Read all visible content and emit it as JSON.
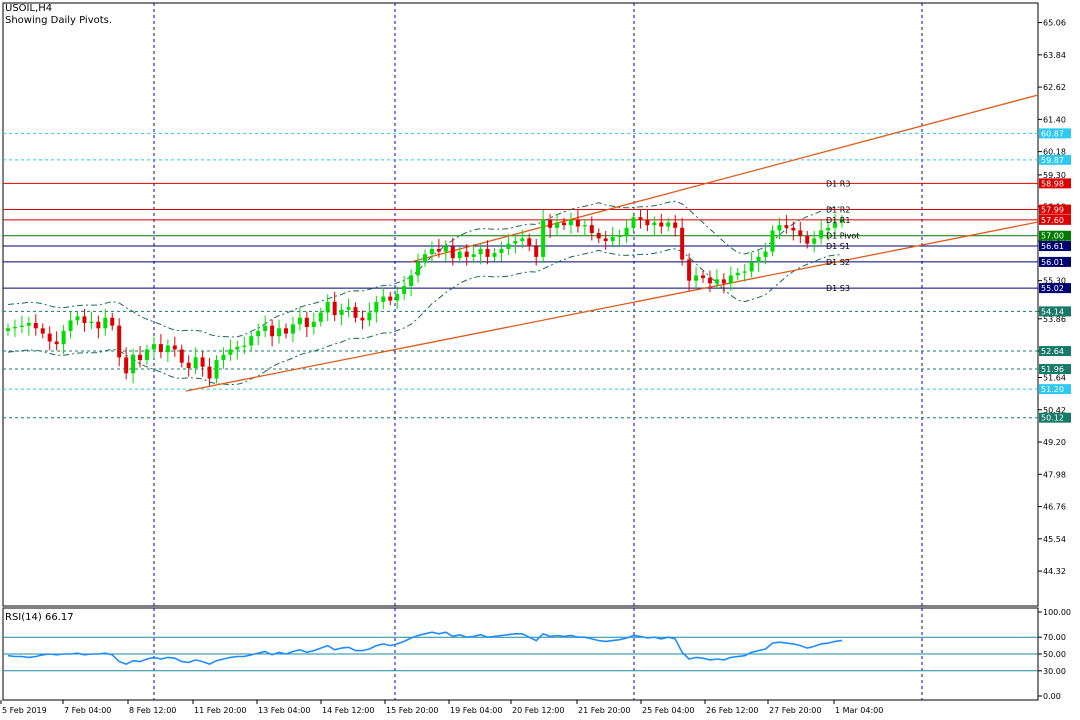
{
  "header": {
    "symbol": "USOIL,H4",
    "subtitle": "Showing Daily Pivots."
  },
  "colors": {
    "bull": "#00dd00",
    "bear": "#dd0000",
    "trend": "#e05a1a",
    "grid_v": "#0000cc",
    "level": "#1a8aa0",
    "rsi_line": "#1e8cff",
    "pivot_red": "#dd0000",
    "pivot_green": "#007a00",
    "pivot_navy": "#000070",
    "envelope": "#1a6a5a"
  },
  "chart_data": [
    {
      "type": "candlestick",
      "title": "USOIL,H4",
      "subtitle": "Showing Daily Pivots.",
      "ylim": [
        43.0,
        65.8
      ],
      "y_ticks": [
        "65.06",
        "63.84",
        "62.62",
        "61.40",
        "60.18",
        "59.30",
        "58.10",
        "56.80",
        "55.30",
        "54.14",
        "53.86",
        "52.64",
        "51.64",
        "50.42",
        "49.20",
        "47.98",
        "46.76",
        "45.54",
        "44.32"
      ],
      "x_labels": [
        "5 Feb 2019",
        "7 Feb 04:00",
        "8 Feb 12:00",
        "11 Feb 20:00",
        "13 Feb 04:00",
        "14 Feb 12:00",
        "15 Feb 20:00",
        "19 Feb 04:00",
        "20 Feb 12:00",
        "21 Feb 20:00",
        "25 Feb 04:00",
        "26 Feb 12:00",
        "27 Feb 20:00",
        "1 Mar 04:00"
      ],
      "candles_close": [
        53.5,
        53.55,
        53.6,
        53.7,
        53.5,
        53.3,
        53.0,
        52.9,
        53.4,
        53.8,
        53.95,
        53.7,
        53.75,
        53.5,
        53.9,
        53.6,
        52.4,
        51.8,
        52.5,
        52.3,
        52.7,
        52.9,
        52.6,
        52.85,
        52.7,
        52.2,
        52.0,
        52.4,
        52.05,
        51.6,
        52.3,
        52.5,
        52.7,
        52.8,
        52.85,
        53.2,
        53.4,
        53.6,
        53.2,
        53.5,
        53.3,
        53.65,
        53.9,
        53.55,
        53.75,
        54.1,
        54.5,
        54.0,
        54.2,
        54.3,
        53.9,
        53.8,
        54.1,
        54.5,
        54.7,
        54.55,
        54.8,
        55.1,
        55.5,
        56.0,
        56.3,
        56.5,
        56.4,
        56.6,
        56.15,
        56.4,
        56.2,
        56.3,
        56.5,
        56.2,
        56.35,
        56.5,
        56.7,
        56.8,
        56.9,
        56.6,
        56.2,
        57.6,
        57.3,
        57.5,
        57.4,
        57.6,
        57.35,
        57.4,
        57.1,
        56.9,
        56.8,
        56.95,
        57.0,
        57.3,
        57.7,
        57.6,
        57.4,
        57.5,
        57.35,
        57.5,
        57.3,
        56.1,
        55.3,
        55.5,
        55.4,
        55.2,
        55.35,
        55.2,
        55.5,
        55.6,
        55.65,
        56.0,
        56.2,
        56.4,
        57.2,
        57.4,
        57.3,
        57.2,
        57.0,
        56.7,
        56.9,
        57.2,
        57.3,
        57.5,
        57.6
      ],
      "open": 53.4,
      "rsi": {
        "label": "RSI(14) 66.17",
        "period": 14,
        "last": 66.17,
        "y_ticks": [
          "100.00",
          "70.00",
          "50.00",
          "30.00",
          "0.00"
        ],
        "levels": [
          70,
          50,
          30
        ],
        "values": [
          48,
          47,
          47,
          46,
          47,
          49,
          50,
          49,
          50,
          50,
          51,
          49,
          50,
          50,
          51,
          49,
          41,
          38,
          42,
          41,
          44,
          46,
          44,
          46,
          45,
          41,
          40,
          43,
          41,
          38,
          42,
          44,
          46,
          47,
          47,
          49,
          51,
          53,
          49,
          52,
          50,
          53,
          55,
          52,
          54,
          57,
          60,
          55,
          57,
          58,
          54,
          54,
          56,
          60,
          62,
          60,
          62,
          65,
          69,
          72,
          74,
          76,
          74,
          76,
          71,
          73,
          70,
          71,
          73,
          70,
          71,
          72,
          73,
          74,
          74,
          70,
          66,
          74,
          71,
          72,
          71,
          72,
          70,
          70,
          68,
          66,
          65,
          66,
          67,
          69,
          72,
          71,
          69,
          70,
          68,
          70,
          68,
          52,
          44,
          46,
          45,
          43,
          44,
          43,
          46,
          47,
          48,
          52,
          54,
          56,
          63,
          64,
          63,
          62,
          60,
          57,
          59,
          62,
          63,
          65,
          66.17
        ]
      }
    }
  ],
  "pivots": [
    {
      "label": "D1 R3",
      "value": 58.98,
      "tag": "58.98",
      "kind": "red"
    },
    {
      "label": "D1 R2",
      "value": 57.99,
      "tag": "57.99",
      "kind": "red"
    },
    {
      "label": "D1 R1",
      "value": 57.6,
      "tag": "57.60",
      "kind": "red"
    },
    {
      "label": "D1 Pivot",
      "value": 57.0,
      "tag": "57.00",
      "kind": "green"
    },
    {
      "label": "D1 S1",
      "value": 56.61,
      "tag": "56.61",
      "kind": "navy"
    },
    {
      "label": "D1 S2",
      "value": 56.01,
      "tag": "56.01",
      "kind": "navy"
    },
    {
      "label": "D1 S3",
      "value": 55.02,
      "tag": "55.02",
      "kind": "navy"
    }
  ],
  "levels": [
    {
      "value": 60.87,
      "tag": "60.87",
      "color": "#2ec8f0"
    },
    {
      "value": 59.87,
      "tag": "59.87",
      "color": "#2ec8f0"
    },
    {
      "value": 54.14,
      "tag": "54.14",
      "color": "#1a7a6a"
    },
    {
      "value": 52.64,
      "tag": "52.64",
      "color": "#1a7a6a"
    },
    {
      "value": 51.96,
      "tag": "51.96",
      "color": "#1a7a6a"
    },
    {
      "value": 51.2,
      "tag": "51.20",
      "color": "#2ec8f0"
    },
    {
      "value": 50.12,
      "tag": "50.12",
      "color": "#1a7a6a"
    }
  ]
}
